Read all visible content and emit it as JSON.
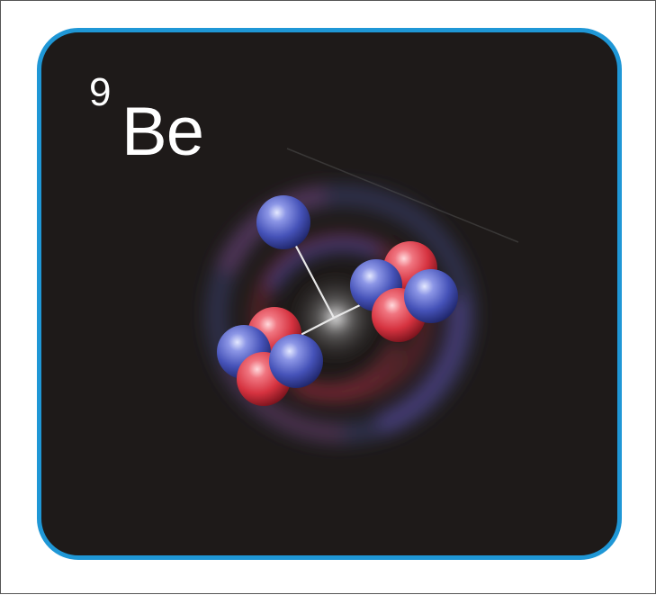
{
  "isotope": {
    "mass_number": "9",
    "symbol": "Be"
  },
  "colors": {
    "border": "#1f97d6",
    "background": "#1e1a19",
    "proton": "#d5323f",
    "neutron": "#4552b8",
    "bond": "#e8e8e8",
    "text": "#ffffff"
  },
  "particles": {
    "alpha_clusters": 2,
    "protons_per_cluster": 2,
    "neutrons_per_cluster": 2,
    "halo_neutron": 1
  }
}
